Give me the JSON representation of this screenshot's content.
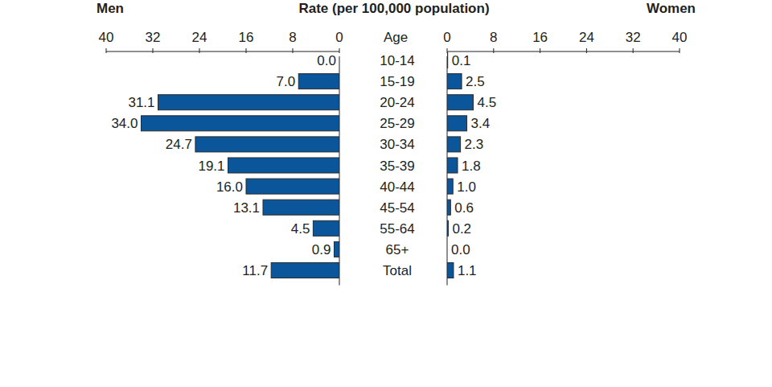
{
  "chart_data": {
    "type": "bar",
    "orientation": "horizontal",
    "title": "Rate (per 100,000 population)",
    "y_label": "Age",
    "categories": [
      "10-14",
      "15-19",
      "20-24",
      "25-29",
      "30-34",
      "35-39",
      "40-44",
      "45-54",
      "55-64",
      "65+",
      "Total"
    ],
    "series": [
      {
        "name": "Men",
        "color": "#0b559b",
        "values": [
          0.0,
          7.0,
          31.1,
          34.0,
          24.7,
          19.1,
          16.0,
          13.1,
          4.5,
          0.9,
          11.7
        ],
        "value_labels": [
          "0.0",
          "7.0",
          "31.1",
          "34.0",
          "24.7",
          "19.1",
          "16.0",
          "13.1",
          "4.5",
          "0.9",
          "11.7"
        ]
      },
      {
        "name": "Women",
        "color": "#0b559b",
        "values": [
          0.1,
          2.5,
          4.5,
          3.4,
          2.3,
          1.8,
          1.0,
          0.6,
          0.2,
          0.0,
          1.1
        ],
        "value_labels": [
          "0.1",
          "2.5",
          "4.5",
          "3.4",
          "2.3",
          "1.8",
          "1.0",
          "0.6",
          "0.2",
          "0.0",
          "1.1"
        ]
      }
    ],
    "xlim": [
      0,
      40
    ],
    "xticks": [
      0,
      8,
      16,
      24,
      32,
      40
    ],
    "data_labels": true
  }
}
